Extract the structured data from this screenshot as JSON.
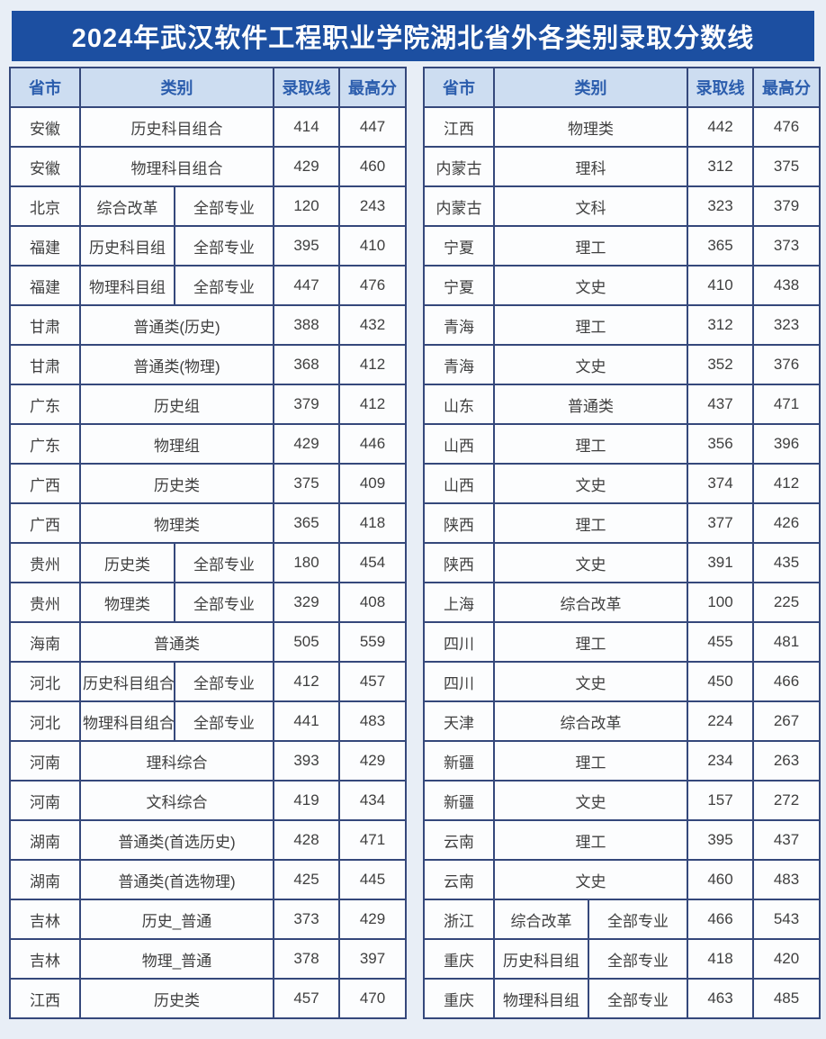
{
  "title": "2024年武汉软件工程职业学院湖北省外各类别录取分数线",
  "columns": {
    "province": "省市",
    "category": "类别",
    "admission_line": "录取线",
    "max_score": "最高分"
  },
  "left_table": {
    "rows": [
      {
        "province": "安徽",
        "category": "历史科目组合",
        "sub": null,
        "line": "414",
        "max": "447"
      },
      {
        "province": "安徽",
        "category": "物理科目组合",
        "sub": null,
        "line": "429",
        "max": "460"
      },
      {
        "province": "北京",
        "category": "综合改革",
        "sub": "全部专业",
        "line": "120",
        "max": "243"
      },
      {
        "province": "福建",
        "category": "历史科目组",
        "sub": "全部专业",
        "line": "395",
        "max": "410"
      },
      {
        "province": "福建",
        "category": "物理科目组",
        "sub": "全部专业",
        "line": "447",
        "max": "476"
      },
      {
        "province": "甘肃",
        "category": "普通类(历史)",
        "sub": null,
        "line": "388",
        "max": "432"
      },
      {
        "province": "甘肃",
        "category": "普通类(物理)",
        "sub": null,
        "line": "368",
        "max": "412"
      },
      {
        "province": "广东",
        "category": "历史组",
        "sub": null,
        "line": "379",
        "max": "412"
      },
      {
        "province": "广东",
        "category": "物理组",
        "sub": null,
        "line": "429",
        "max": "446"
      },
      {
        "province": "广西",
        "category": "历史类",
        "sub": null,
        "line": "375",
        "max": "409"
      },
      {
        "province": "广西",
        "category": "物理类",
        "sub": null,
        "line": "365",
        "max": "418"
      },
      {
        "province": "贵州",
        "category": "历史类",
        "sub": "全部专业",
        "line": "180",
        "max": "454"
      },
      {
        "province": "贵州",
        "category": "物理类",
        "sub": "全部专业",
        "line": "329",
        "max": "408"
      },
      {
        "province": "海南",
        "category": "普通类",
        "sub": null,
        "line": "505",
        "max": "559"
      },
      {
        "province": "河北",
        "category": "历史科目组合",
        "sub": "全部专业",
        "line": "412",
        "max": "457"
      },
      {
        "province": "河北",
        "category": "物理科目组合",
        "sub": "全部专业",
        "line": "441",
        "max": "483"
      },
      {
        "province": "河南",
        "category": "理科综合",
        "sub": null,
        "line": "393",
        "max": "429"
      },
      {
        "province": "河南",
        "category": "文科综合",
        "sub": null,
        "line": "419",
        "max": "434"
      },
      {
        "province": "湖南",
        "category": "普通类(首选历史)",
        "sub": null,
        "line": "428",
        "max": "471"
      },
      {
        "province": "湖南",
        "category": "普通类(首选物理)",
        "sub": null,
        "line": "425",
        "max": "445"
      },
      {
        "province": "吉林",
        "category": "历史_普通",
        "sub": null,
        "line": "373",
        "max": "429"
      },
      {
        "province": "吉林",
        "category": "物理_普通",
        "sub": null,
        "line": "378",
        "max": "397"
      },
      {
        "province": "江西",
        "category": "历史类",
        "sub": null,
        "line": "457",
        "max": "470"
      }
    ]
  },
  "right_table": {
    "rows": [
      {
        "province": "江西",
        "category": "物理类",
        "sub": null,
        "line": "442",
        "max": "476"
      },
      {
        "province": "内蒙古",
        "category": "理科",
        "sub": null,
        "line": "312",
        "max": "375"
      },
      {
        "province": "内蒙古",
        "category": "文科",
        "sub": null,
        "line": "323",
        "max": "379"
      },
      {
        "province": "宁夏",
        "category": "理工",
        "sub": null,
        "line": "365",
        "max": "373"
      },
      {
        "province": "宁夏",
        "category": "文史",
        "sub": null,
        "line": "410",
        "max": "438"
      },
      {
        "province": "青海",
        "category": "理工",
        "sub": null,
        "line": "312",
        "max": "323"
      },
      {
        "province": "青海",
        "category": "文史",
        "sub": null,
        "line": "352",
        "max": "376"
      },
      {
        "province": "山东",
        "category": "普通类",
        "sub": null,
        "line": "437",
        "max": "471"
      },
      {
        "province": "山西",
        "category": "理工",
        "sub": null,
        "line": "356",
        "max": "396"
      },
      {
        "province": "山西",
        "category": "文史",
        "sub": null,
        "line": "374",
        "max": "412"
      },
      {
        "province": "陕西",
        "category": "理工",
        "sub": null,
        "line": "377",
        "max": "426"
      },
      {
        "province": "陕西",
        "category": "文史",
        "sub": null,
        "line": "391",
        "max": "435"
      },
      {
        "province": "上海",
        "category": "综合改革",
        "sub": null,
        "line": "100",
        "max": "225"
      },
      {
        "province": "四川",
        "category": "理工",
        "sub": null,
        "line": "455",
        "max": "481"
      },
      {
        "province": "四川",
        "category": "文史",
        "sub": null,
        "line": "450",
        "max": "466"
      },
      {
        "province": "天津",
        "category": "综合改革",
        "sub": null,
        "line": "224",
        "max": "267"
      },
      {
        "province": "新疆",
        "category": "理工",
        "sub": null,
        "line": "234",
        "max": "263"
      },
      {
        "province": "新疆",
        "category": "文史",
        "sub": null,
        "line": "157",
        "max": "272"
      },
      {
        "province": "云南",
        "category": "理工",
        "sub": null,
        "line": "395",
        "max": "437"
      },
      {
        "province": "云南",
        "category": "文史",
        "sub": null,
        "line": "460",
        "max": "483"
      },
      {
        "province": "浙江",
        "category": "综合改革",
        "sub": "全部专业",
        "line": "466",
        "max": "543"
      },
      {
        "province": "重庆",
        "category": "历史科目组",
        "sub": "全部专业",
        "line": "418",
        "max": "420"
      },
      {
        "province": "重庆",
        "category": "物理科目组",
        "sub": "全部专业",
        "line": "463",
        "max": "485"
      }
    ]
  },
  "colors": {
    "title_bar_bg": "#1c4fa1",
    "title_text": "#ffffff",
    "header_bg": "#cdddf1",
    "header_text": "#2b5dad",
    "table_border": "#35487b",
    "page_bg": "#e8eef6"
  }
}
